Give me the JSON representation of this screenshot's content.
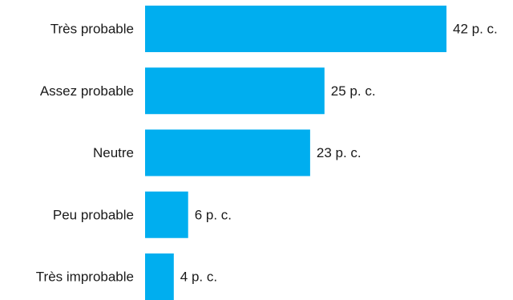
{
  "chart_data": {
    "type": "bar",
    "orientation": "horizontal",
    "title": "",
    "xlabel": "",
    "ylabel": "",
    "categories": [
      "Très probable",
      "Assez probable",
      "Neutre",
      "Peu probable",
      "Très improbable"
    ],
    "values": [
      42,
      25,
      23,
      6,
      4
    ],
    "value_labels": [
      "42 p. c.",
      "25 p. c.",
      "23 p. c.",
      "6 p. c.",
      "4 p. c."
    ],
    "xlim": [
      0,
      42
    ],
    "grid": false,
    "legend": "none",
    "bar_color": "#00AEEF"
  }
}
